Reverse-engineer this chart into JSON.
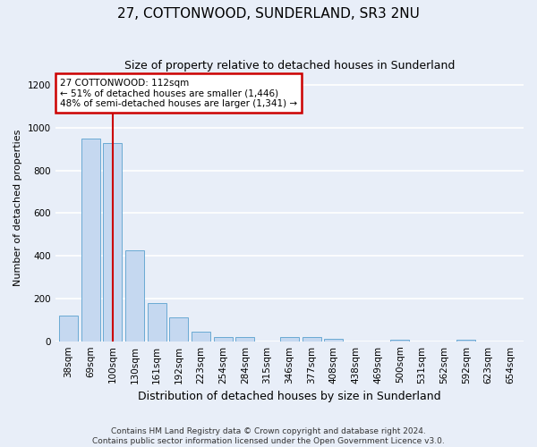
{
  "title": "27, COTTONWOOD, SUNDERLAND, SR3 2NU",
  "subtitle": "Size of property relative to detached houses in Sunderland",
  "xlabel": "Distribution of detached houses by size in Sunderland",
  "ylabel": "Number of detached properties",
  "footer1": "Contains HM Land Registry data © Crown copyright and database right 2024.",
  "footer2": "Contains public sector information licensed under the Open Government Licence v3.0.",
  "bar_labels": [
    "38sqm",
    "69sqm",
    "100sqm",
    "130sqm",
    "161sqm",
    "192sqm",
    "223sqm",
    "254sqm",
    "284sqm",
    "315sqm",
    "346sqm",
    "377sqm",
    "408sqm",
    "438sqm",
    "469sqm",
    "500sqm",
    "531sqm",
    "562sqm",
    "592sqm",
    "623sqm",
    "654sqm"
  ],
  "bar_values": [
    120,
    950,
    930,
    425,
    178,
    112,
    45,
    18,
    18,
    0,
    18,
    18,
    10,
    0,
    0,
    8,
    0,
    0,
    8,
    0,
    0
  ],
  "bar_color": "#c5d8f0",
  "bar_edgecolor": "#6aaad4",
  "vline_x": 2,
  "vline_color": "#cc0000",
  "annotation_text": "27 COTTONWOOD: 112sqm\n← 51% of detached houses are smaller (1,446)\n48% of semi-detached houses are larger (1,341) →",
  "annotation_box_edgecolor": "#cc0000",
  "annotation_box_facecolor": "white",
  "ylim": [
    0,
    1250
  ],
  "yticks": [
    0,
    200,
    400,
    600,
    800,
    1000,
    1200
  ],
  "bg_color": "#e8eef8",
  "grid_color": "white",
  "title_fontsize": 11,
  "subtitle_fontsize": 9,
  "ylabel_fontsize": 8,
  "xlabel_fontsize": 9,
  "tick_fontsize": 7.5,
  "footer_fontsize": 6.5,
  "annot_fontsize": 7.5
}
